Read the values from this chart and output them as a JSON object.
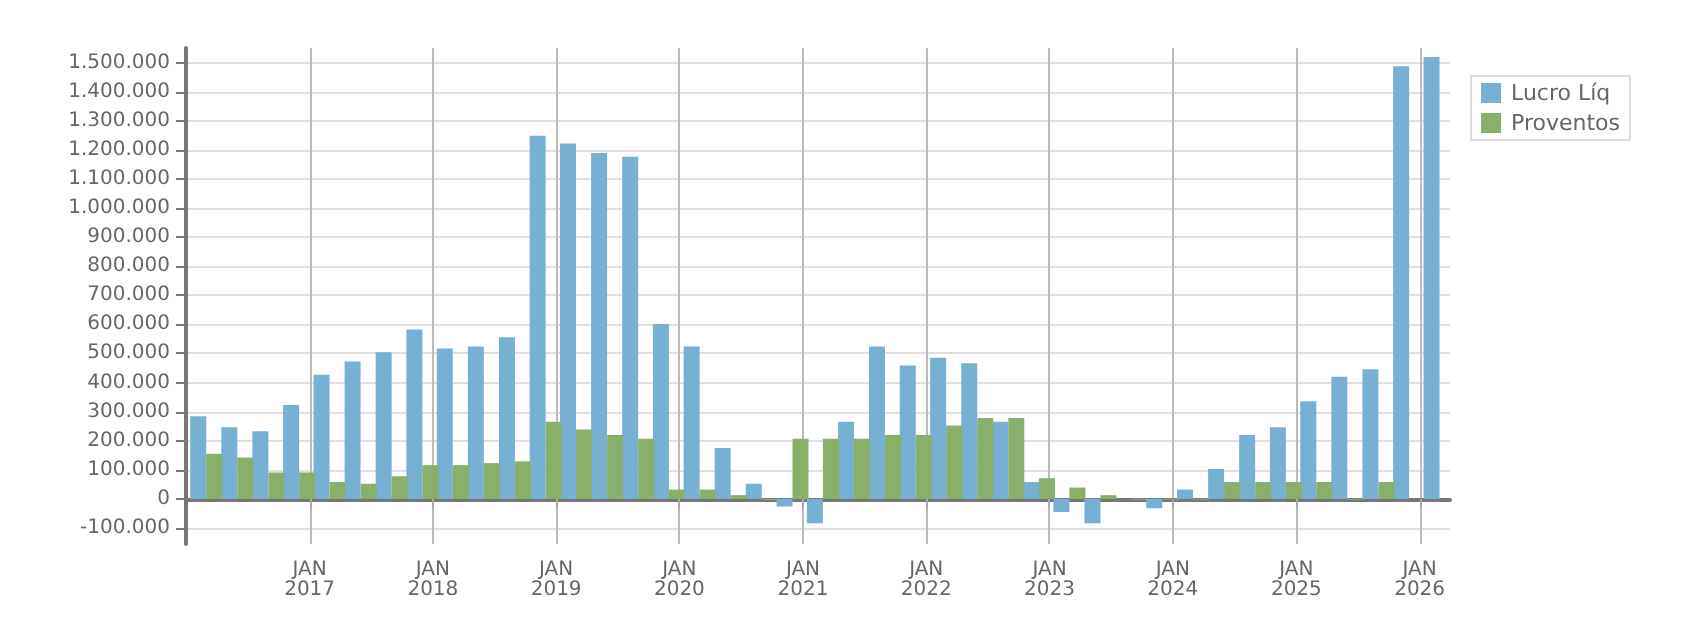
{
  "chart_data": {
    "type": "bar",
    "x": [
      "2016-03",
      "2016-06",
      "2016-09",
      "2016-12",
      "2017-03",
      "2017-06",
      "2017-09",
      "2017-12",
      "2018-03",
      "2018-06",
      "2018-09",
      "2018-12",
      "2019-03",
      "2019-06",
      "2019-09",
      "2019-12",
      "2020-03",
      "2020-06",
      "2020-09",
      "2020-12",
      "2021-03",
      "2021-06",
      "2021-09",
      "2021-12",
      "2022-03",
      "2022-06",
      "2022-09",
      "2022-12",
      "2023-03",
      "2023-06",
      "2023-09",
      "2023-12",
      "2024-03",
      "2024-06",
      "2024-09",
      "2024-12",
      "2025-03",
      "2025-06",
      "2025-09",
      "2025-12",
      "2026-03"
    ],
    "series": [
      {
        "name": "Lucro Líq",
        "color": "#78b0d4",
        "values": [
          284000,
          246000,
          233000,
          323000,
          427000,
          472000,
          504000,
          582000,
          517000,
          524000,
          556000,
          1248000,
          1222000,
          1189000,
          1176000,
          601000,
          524000,
          175000,
          52000,
          -26000,
          -84000,
          265000,
          524000,
          459000,
          485000,
          466000,
          265000,
          58000,
          -45000,
          -84000,
          null,
          -32000,
          32000,
          103000,
          220000,
          246000,
          336000,
          420000,
          446000,
          1487000,
          1519000
        ]
      },
      {
        "name": "Proventos",
        "color": "#88b06a",
        "values": [
          155000,
          142000,
          91000,
          91000,
          58000,
          52000,
          78000,
          116000,
          116000,
          123000,
          129000,
          265000,
          239000,
          220000,
          207000,
          32000,
          32000,
          13000,
          -4000,
          207000,
          207000,
          207000,
          220000,
          220000,
          252000,
          278000,
          278000,
          71000,
          39000,
          13000,
          -3000,
          -3000,
          -3000,
          58000,
          58000,
          58000,
          58000,
          -3000,
          58000,
          null,
          null
        ]
      }
    ],
    "xlim": [
      "2016-01",
      "2026-04"
    ],
    "xticks": [
      {
        "value": "2017-01",
        "label": "JAN\n2017"
      },
      {
        "value": "2018-01",
        "label": "JAN\n2018"
      },
      {
        "value": "2019-01",
        "label": "JAN\n2019"
      },
      {
        "value": "2020-01",
        "label": "JAN\n2020"
      },
      {
        "value": "2021-01",
        "label": "JAN\n2021"
      },
      {
        "value": "2022-01",
        "label": "JAN\n2022"
      },
      {
        "value": "2023-01",
        "label": "JAN\n2023"
      },
      {
        "value": "2024-01",
        "label": "JAN\n2024"
      },
      {
        "value": "2025-01",
        "label": "JAN\n2025"
      },
      {
        "value": "2026-01",
        "label": "JAN\n2026"
      }
    ],
    "ylim": [
      -155000,
      1550000
    ],
    "yticks": [
      {
        "value": -100000,
        "label": "-100.000"
      },
      0,
      {
        "value": 100000,
        "label": "100.000"
      },
      {
        "value": 200000,
        "label": "200.000"
      },
      {
        "value": 300000,
        "label": "300.000"
      },
      {
        "value": 400000,
        "label": "400.000"
      },
      {
        "value": 500000,
        "label": "500.000"
      },
      {
        "value": 600000,
        "label": "600.000"
      },
      {
        "value": 700000,
        "label": "700.000"
      },
      {
        "value": 800000,
        "label": "800.000"
      },
      {
        "value": 900000,
        "label": "900.000"
      },
      {
        "value": 1000000,
        "label": "1.000.000"
      },
      {
        "value": 1100000,
        "label": "1.100.000"
      },
      {
        "value": 1200000,
        "label": "1.200.000"
      },
      {
        "value": 1300000,
        "label": "1.300.000"
      },
      {
        "value": 1400000,
        "label": "1.400.000"
      },
      {
        "value": 1500000,
        "label": "1.500.000"
      }
    ],
    "grid": true,
    "legend": "top right"
  }
}
